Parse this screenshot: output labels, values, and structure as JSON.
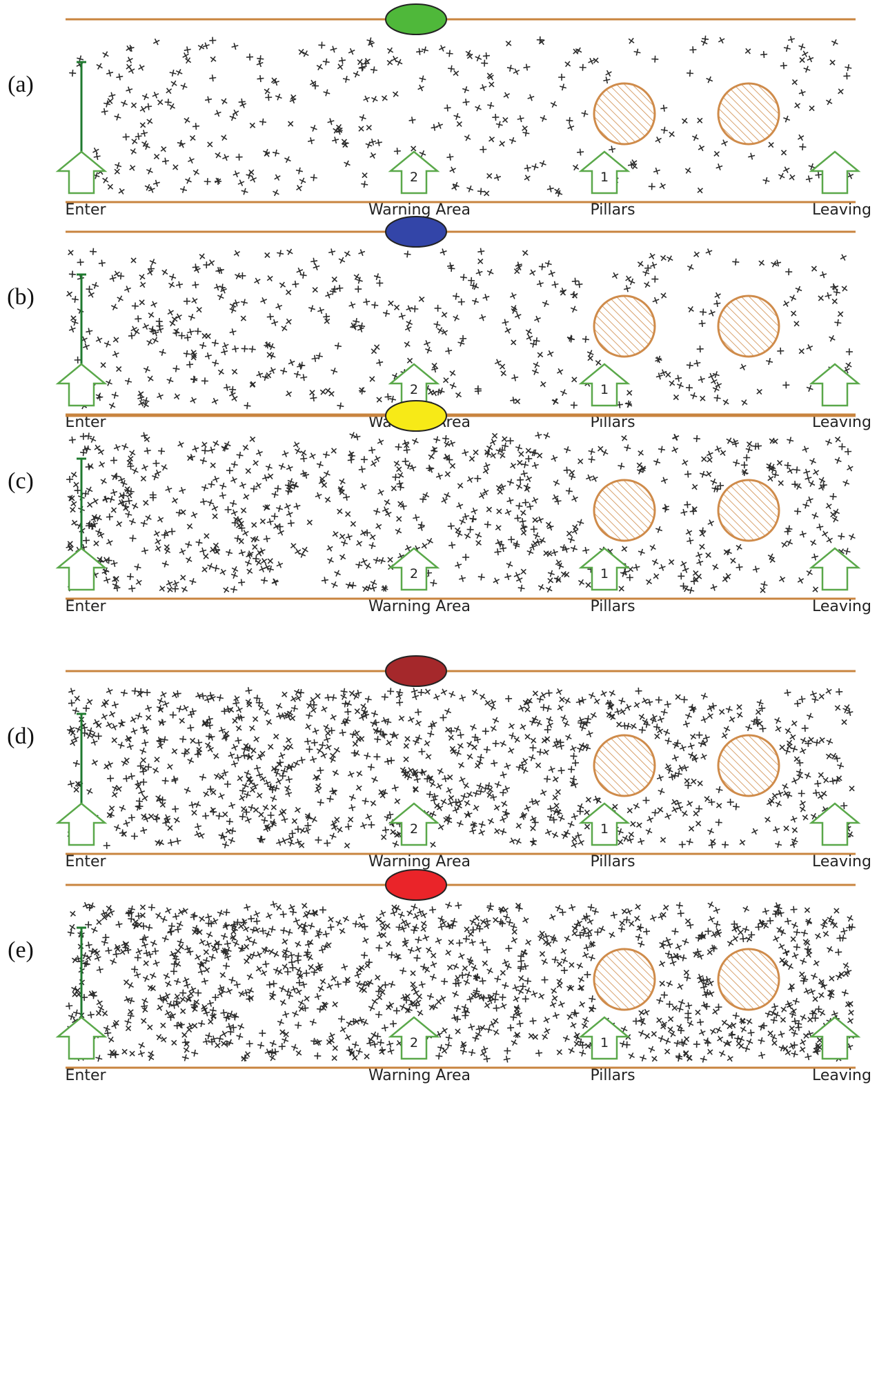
{
  "panels": [
    {
      "id": "a",
      "label": "(a)",
      "indicator_color": "#4fb83a"
    },
    {
      "id": "b",
      "label": "(b)",
      "indicator_color": "#3345a8"
    },
    {
      "id": "c",
      "label": "(c)",
      "indicator_color": "#f7ea17"
    },
    {
      "id": "d",
      "label": "(d)",
      "indicator_color": "#a5282b"
    },
    {
      "id": "e",
      "label": "(e)",
      "indicator_color": "#ea2429"
    }
  ],
  "annotations": {
    "enter": "Enter",
    "warning_area": "Warning Area",
    "pillars": "Pillars",
    "leaving": "Leaving",
    "warning_number": "2",
    "pillars_number": "1"
  },
  "colors": {
    "corridor_wall": "#c8843f",
    "pillar": "#cf8b4a",
    "arrow": "#5aa84a",
    "entry_line": "#1f7a2f",
    "agent": "#2a2a2a"
  },
  "crowd_density": [
    0.35,
    0.45,
    0.65,
    0.8,
    0.9
  ]
}
